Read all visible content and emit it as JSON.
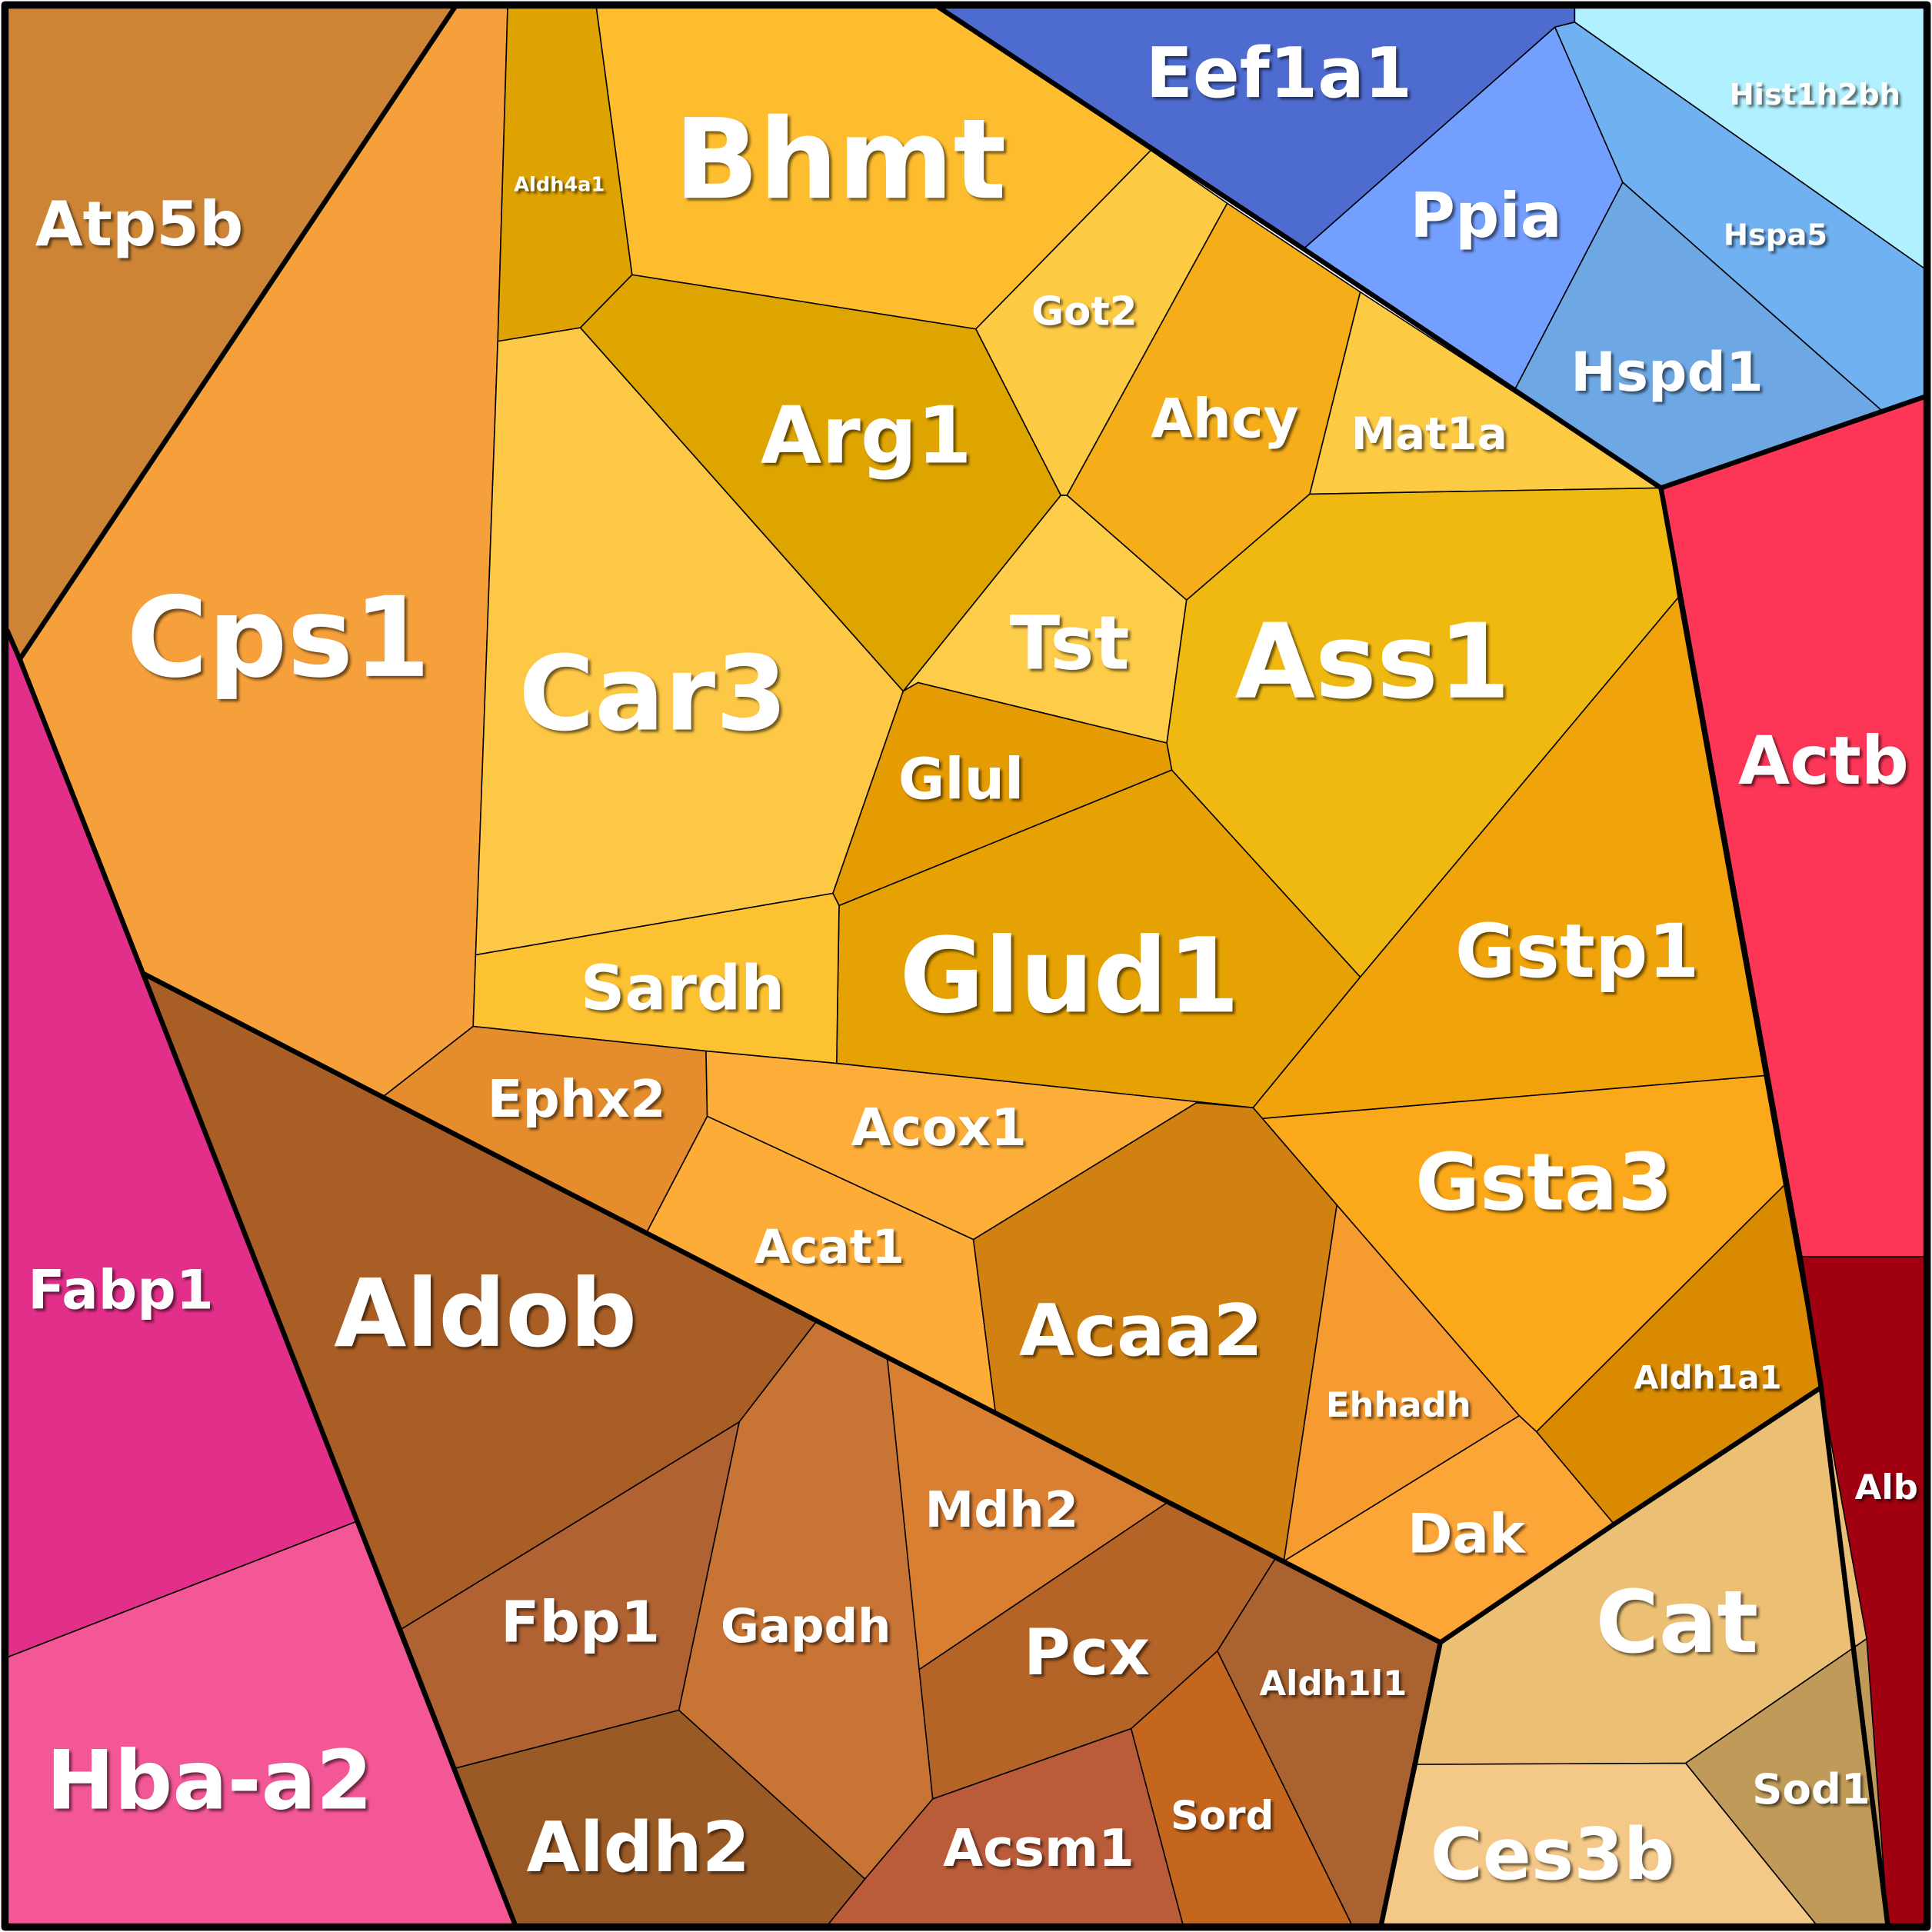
{
  "chart_data": {
    "type": "voronoi-treemap",
    "cells": [
      {
        "label": "Atp5b",
        "color": "#cd8535"
      },
      {
        "label": "Cps1",
        "color": "#f5a03a"
      },
      {
        "label": "Fabp1",
        "color": "#e2308a"
      },
      {
        "label": "Hba-a2",
        "color": "#f45796"
      },
      {
        "label": "Aldh4a1",
        "color": "#dea300"
      },
      {
        "label": "Bhmt",
        "color": "#fdbd2e"
      },
      {
        "label": "Arg1",
        "color": "#dea400"
      },
      {
        "label": "Got2",
        "color": "#fdca44"
      },
      {
        "label": "Ahcy",
        "color": "#f5ad1a"
      },
      {
        "label": "Mat1a",
        "color": "#fdca44"
      },
      {
        "label": "Tst",
        "color": "#fdcc48"
      },
      {
        "label": "Car3",
        "color": "#fdc845"
      },
      {
        "label": "Ass1",
        "color": "#f0b912"
      },
      {
        "label": "Glul",
        "color": "#e59b02"
      },
      {
        "label": "Glud1",
        "color": "#e5a202"
      },
      {
        "label": "Sardh",
        "color": "#fdc232"
      },
      {
        "label": "Gstp1",
        "color": "#f0a30a"
      },
      {
        "label": "Gsta3",
        "color": "#fba91a"
      },
      {
        "label": "Aldh1a1",
        "color": "#d98a00"
      },
      {
        "label": "Ephx2",
        "color": "#e58d2c"
      },
      {
        "label": "Acox1",
        "color": "#fdae38"
      },
      {
        "label": "Acat1",
        "color": "#fdac38"
      },
      {
        "label": "Acaa2",
        "color": "#d18012"
      },
      {
        "label": "Ehhadh",
        "color": "#f59b30"
      },
      {
        "label": "Dak",
        "color": "#fda638"
      },
      {
        "label": "Eef1a1",
        "color": "#4e6cd0"
      },
      {
        "label": "Ppia",
        "color": "#739ffe"
      },
      {
        "label": "Hist1h2bh",
        "color": "#b0f0ff"
      },
      {
        "label": "Hspa5",
        "color": "#70b1f2"
      },
      {
        "label": "Hspd1",
        "color": "#6ea8e4"
      },
      {
        "label": "Actb",
        "color": "#fd3657"
      },
      {
        "label": "Alb",
        "color": "#a00010"
      },
      {
        "label": "Cat",
        "color": "#ecc074"
      },
      {
        "label": "Sod1",
        "color": "#c09a58"
      },
      {
        "label": "Ces3b",
        "color": "#f4c887"
      },
      {
        "label": "Aldob",
        "color": "#a85e24"
      },
      {
        "label": "Fbp1",
        "color": "#b06233"
      },
      {
        "label": "Gapdh",
        "color": "#c87434"
      },
      {
        "label": "Aldh2",
        "color": "#9a5a25"
      },
      {
        "label": "Mdh2",
        "color": "#d97f32"
      },
      {
        "label": "Pcx",
        "color": "#b46426"
      },
      {
        "label": "Aldh1l1",
        "color": "#a96230"
      },
      {
        "label": "Sord",
        "color": "#c4661e"
      },
      {
        "label": "Acsm1",
        "color": "#ba5c3a"
      }
    ]
  }
}
